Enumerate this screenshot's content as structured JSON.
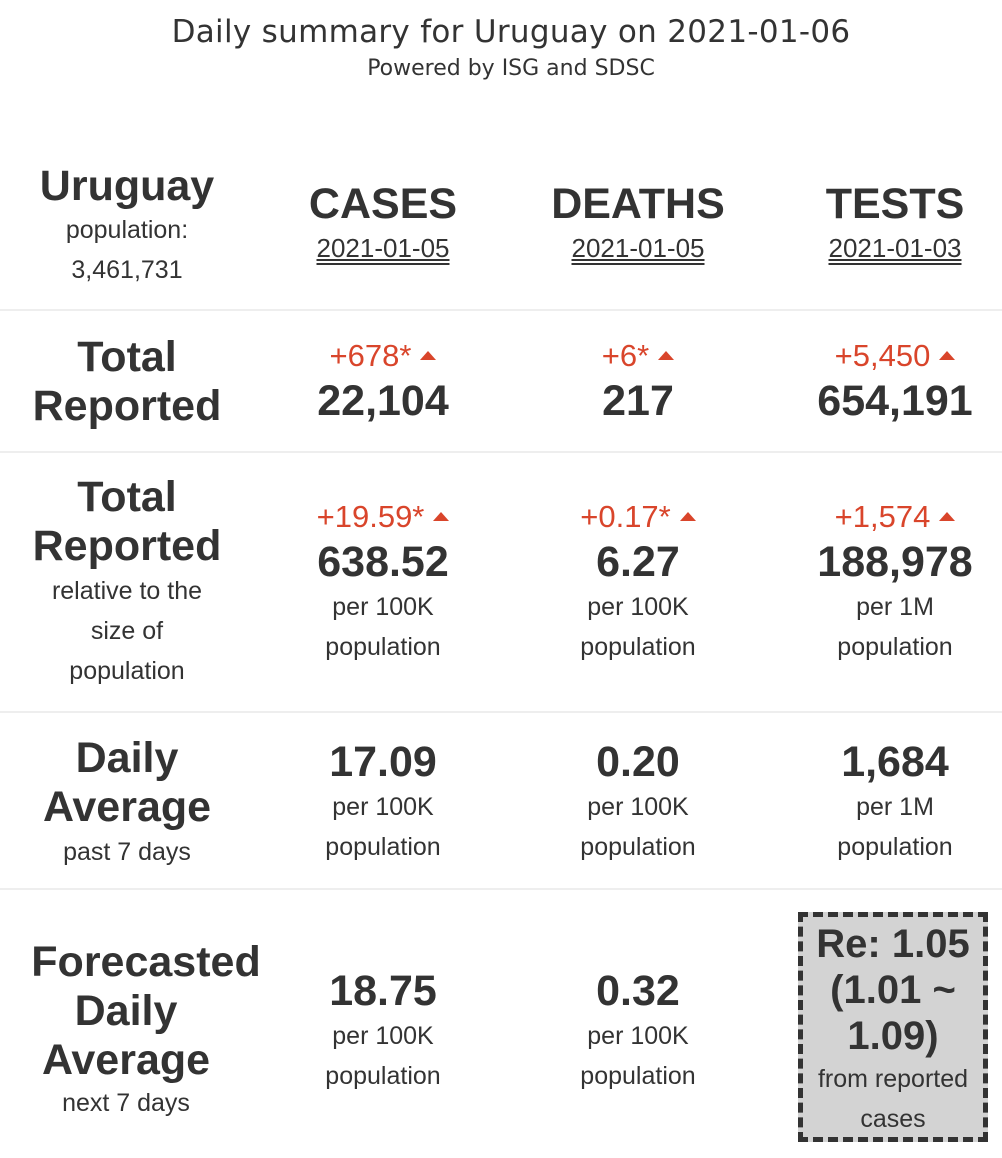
{
  "header": {
    "title": "Daily summary for Uruguay on 2021-01-06",
    "subtitle": "Powered by ISG and SDSC"
  },
  "country": {
    "name": "Uruguay",
    "population_label": "population:",
    "population": "3,461,731"
  },
  "columns": [
    {
      "label": "CASES",
      "date": "2021-01-05"
    },
    {
      "label": "DEATHS",
      "date": "2021-01-05"
    },
    {
      "label": "TESTS",
      "date": "2021-01-03"
    }
  ],
  "rows": {
    "total": {
      "label_line1": "Total",
      "label_line2": "Reported",
      "cells": [
        {
          "delta": "+678*",
          "value": "22,104"
        },
        {
          "delta": "+6*",
          "value": "217"
        },
        {
          "delta": "+5,450",
          "value": "654,191"
        }
      ]
    },
    "relative": {
      "label_line1": "Total",
      "label_line2": "Reported",
      "sub1": "relative to the",
      "sub2": "size of",
      "sub3": "population",
      "cells": [
        {
          "delta": "+19.59*",
          "value": "638.52",
          "unit1": "per 100K",
          "unit2": "population"
        },
        {
          "delta": "+0.17*",
          "value": "6.27",
          "unit1": "per 100K",
          "unit2": "population"
        },
        {
          "delta": "+1,574",
          "value": "188,978",
          "unit1": "per 1M",
          "unit2": "population"
        }
      ]
    },
    "daily": {
      "label_line1": "Daily",
      "label_line2": "Average",
      "sub1": "past 7 days",
      "cells": [
        {
          "value": "17.09",
          "unit1": "per 100K",
          "unit2": "population"
        },
        {
          "value": "0.20",
          "unit1": "per 100K",
          "unit2": "population"
        },
        {
          "value": "1,684",
          "unit1": "per 1M",
          "unit2": "population"
        }
      ]
    },
    "forecast": {
      "label_line1": "Forecasted",
      "label_line2": "Daily",
      "label_line3": "Average",
      "sub1": "next 7 days",
      "cells": [
        {
          "value": "18.75",
          "unit1": "per 100K",
          "unit2": "population"
        },
        {
          "value": "0.32",
          "unit1": "per 100K",
          "unit2": "population"
        }
      ],
      "re": {
        "line1": "Re: 1.05",
        "line2": "(1.01 ~",
        "line3": "1.09)",
        "sub1": "from reported",
        "sub2": "cases"
      }
    }
  },
  "colors": {
    "delta": "#d9452b",
    "text": "#333333",
    "re_box_bg": "#d3d3d3"
  }
}
